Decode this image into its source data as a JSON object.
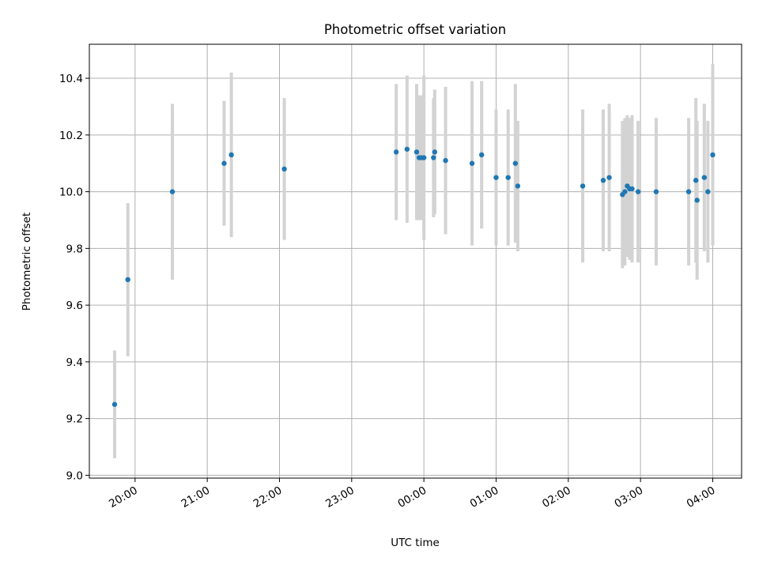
{
  "chart_data": {
    "type": "scatter",
    "title": "Photometric offset variation",
    "xlabel": "UTC time",
    "ylabel": "Photometric offset",
    "x_unit": "hours (UTC clock time, crossing midnight)",
    "xlim": [
      "19:22",
      "04:24"
    ],
    "ylim": [
      8.99,
      10.52
    ],
    "grid": true,
    "x_ticks": [
      "20:00",
      "21:00",
      "22:00",
      "23:00",
      "00:00",
      "01:00",
      "02:00",
      "03:00",
      "04:00"
    ],
    "y_ticks": [
      "9.0",
      "9.2",
      "9.4",
      "9.6",
      "9.8",
      "10.0",
      "10.2",
      "10.4"
    ],
    "colors": {
      "point": "#1f77b4",
      "errorbar": "#d3d3d3",
      "grid": "#b0b0b0"
    },
    "points": [
      {
        "x": "19:43",
        "y": 9.25,
        "yerr": 0.19
      },
      {
        "x": "19:54",
        "y": 9.69,
        "yerr": 0.27
      },
      {
        "x": "20:31",
        "y": 10.0,
        "yerr": 0.31
      },
      {
        "x": "21:14",
        "y": 10.1,
        "yerr": 0.22
      },
      {
        "x": "21:20",
        "y": 10.13,
        "yerr": 0.29
      },
      {
        "x": "22:04",
        "y": 10.08,
        "yerr": 0.25
      },
      {
        "x": "23:37",
        "y": 10.14,
        "yerr": 0.24
      },
      {
        "x": "23:46",
        "y": 10.15,
        "yerr": 0.26
      },
      {
        "x": "23:54",
        "y": 10.14,
        "yerr": 0.24
      },
      {
        "x": "23:56",
        "y": 10.12,
        "yerr": 0.22
      },
      {
        "x": "23:58",
        "y": 10.12,
        "yerr": 0.22
      },
      {
        "x": "00:00",
        "y": 10.12,
        "yerr": 0.29
      },
      {
        "x": "00:08",
        "y": 10.12,
        "yerr": 0.21
      },
      {
        "x": "00:09",
        "y": 10.14,
        "yerr": 0.22
      },
      {
        "x": "00:18",
        "y": 10.11,
        "yerr": 0.26
      },
      {
        "x": "00:40",
        "y": 10.1,
        "yerr": 0.29
      },
      {
        "x": "00:48",
        "y": 10.13,
        "yerr": 0.26
      },
      {
        "x": "01:00",
        "y": 10.05,
        "yerr": 0.24
      },
      {
        "x": "01:10",
        "y": 10.05,
        "yerr": 0.24
      },
      {
        "x": "01:16",
        "y": 10.1,
        "yerr": 0.28
      },
      {
        "x": "01:18",
        "y": 10.02,
        "yerr": 0.23
      },
      {
        "x": "02:12",
        "y": 10.02,
        "yerr": 0.27
      },
      {
        "x": "02:29",
        "y": 10.04,
        "yerr": 0.25
      },
      {
        "x": "02:34",
        "y": 10.05,
        "yerr": 0.26
      },
      {
        "x": "02:45",
        "y": 9.99,
        "yerr": 0.26
      },
      {
        "x": "02:47",
        "y": 10.0,
        "yerr": 0.26
      },
      {
        "x": "02:49",
        "y": 10.02,
        "yerr": 0.25
      },
      {
        "x": "02:51",
        "y": 10.01,
        "yerr": 0.25
      },
      {
        "x": "02:53",
        "y": 10.01,
        "yerr": 0.26
      },
      {
        "x": "02:58",
        "y": 10.0,
        "yerr": 0.25
      },
      {
        "x": "03:13",
        "y": 10.0,
        "yerr": 0.26
      },
      {
        "x": "03:40",
        "y": 10.0,
        "yerr": 0.26
      },
      {
        "x": "03:46",
        "y": 10.04,
        "yerr": 0.29
      },
      {
        "x": "03:47",
        "y": 9.97,
        "yerr": 0.28
      },
      {
        "x": "03:53",
        "y": 10.05,
        "yerr": 0.26
      },
      {
        "x": "03:56",
        "y": 10.0,
        "yerr": 0.25
      },
      {
        "x": "04:00",
        "y": 10.13,
        "yerr": 0.32
      }
    ]
  }
}
